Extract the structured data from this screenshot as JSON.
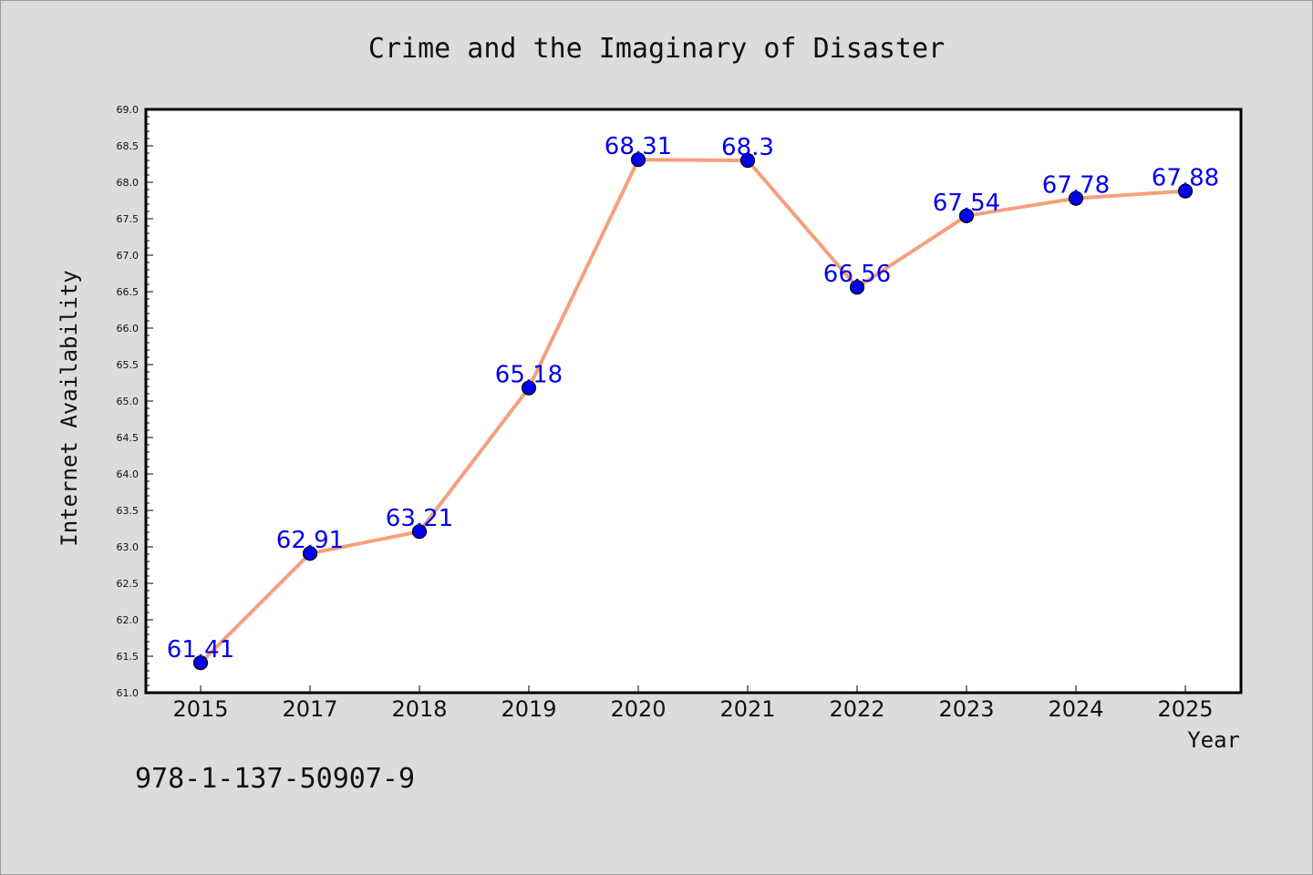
{
  "chart_data": {
    "type": "line",
    "title": "Crime and the Imaginary of Disaster",
    "xlabel": "Year",
    "ylabel": "Internet Availability",
    "categories": [
      "2015",
      "2017",
      "2018",
      "2019",
      "2020",
      "2021",
      "2022",
      "2023",
      "2024",
      "2025"
    ],
    "values": [
      61.41,
      62.91,
      63.21,
      65.18,
      68.31,
      68.3,
      66.56,
      67.54,
      67.78,
      67.88
    ],
    "value_labels": [
      "61.41",
      "62.91",
      "63.21",
      "65.18",
      "68.31",
      "68.3",
      "66.56",
      "67.54",
      "67.78",
      "67.88"
    ],
    "ylim": [
      61.0,
      69.0
    ],
    "ytick_labels": [
      "61.0",
      "61.5",
      "62.0",
      "62.5",
      "63.0",
      "63.5",
      "64.0",
      "64.5",
      "65.0",
      "65.5",
      "66.0",
      "66.5",
      "67.0",
      "67.5",
      "68.0",
      "68.5",
      "69.0"
    ],
    "line_color": "#f4a07c",
    "marker_color": "#0000ee",
    "label_color": "#0000ee",
    "grid": false,
    "legend": "none"
  },
  "footer": {
    "isbn": "978-1-137-50907-9"
  }
}
